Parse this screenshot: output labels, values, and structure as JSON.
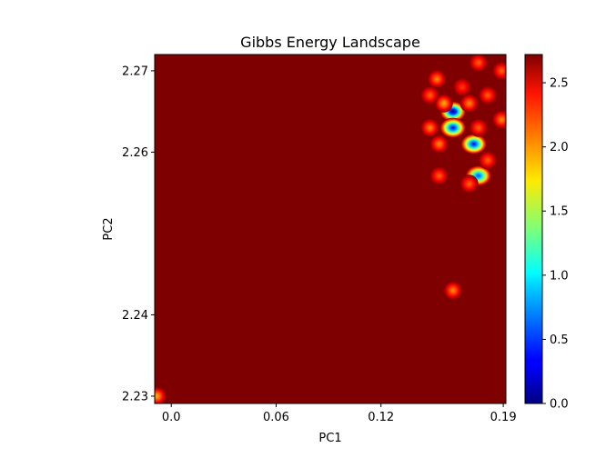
{
  "chart_data": {
    "type": "heatmap",
    "title": "Gibbs Energy Landscape",
    "xlabel": "PC1",
    "ylabel": "PC2",
    "xlim": [
      -0.0095,
      0.1915
    ],
    "ylim": [
      2.2291,
      2.272
    ],
    "x_ticks": [
      {
        "value": 0.0,
        "label": "0.0"
      },
      {
        "value": 0.06,
        "label": "0.06"
      },
      {
        "value": 0.12,
        "label": "0.12"
      },
      {
        "value": 0.19,
        "label": "0.19"
      }
    ],
    "y_ticks": [
      {
        "value": 2.23,
        "label": "2.23"
      },
      {
        "value": 2.24,
        "label": "2.24"
      },
      {
        "value": 2.26,
        "label": "2.26"
      },
      {
        "value": 2.27,
        "label": "2.27"
      }
    ],
    "colorbar": {
      "colormap": "jet",
      "range": [
        0.0,
        2.72
      ],
      "ticks": [
        {
          "value": 0.0,
          "label": "0.0"
        },
        {
          "value": 0.5,
          "label": "0.5"
        },
        {
          "value": 1.0,
          "label": "1.0"
        },
        {
          "value": 1.5,
          "label": "1.5"
        },
        {
          "value": 2.0,
          "label": "2.0"
        },
        {
          "value": 2.5,
          "label": "2.5"
        }
      ]
    },
    "background_value": 2.72,
    "spots": [
      {
        "x": 0.1612,
        "y": 2.265,
        "value": 0.0
      },
      {
        "x": 0.1612,
        "y": 2.263,
        "value": 0.3
      },
      {
        "x": 0.1731,
        "y": 2.261,
        "value": 0.3
      },
      {
        "x": 0.1758,
        "y": 2.2571,
        "value": 0.5
      },
      {
        "x": 0.152,
        "y": 2.269,
        "value": 2.0
      },
      {
        "x": 0.1665,
        "y": 2.268,
        "value": 2.2
      },
      {
        "x": 0.1758,
        "y": 2.271,
        "value": 2.1
      },
      {
        "x": 0.189,
        "y": 2.27,
        "value": 2.1
      },
      {
        "x": 0.148,
        "y": 2.267,
        "value": 2.1
      },
      {
        "x": 0.156,
        "y": 2.266,
        "value": 1.9
      },
      {
        "x": 0.1705,
        "y": 2.266,
        "value": 2.0
      },
      {
        "x": 0.1811,
        "y": 2.267,
        "value": 2.1
      },
      {
        "x": 0.148,
        "y": 2.263,
        "value": 2.0
      },
      {
        "x": 0.1758,
        "y": 2.263,
        "value": 2.1
      },
      {
        "x": 0.189,
        "y": 2.264,
        "value": 2.0
      },
      {
        "x": 0.1533,
        "y": 2.261,
        "value": 2.0
      },
      {
        "x": 0.1533,
        "y": 2.2571,
        "value": 2.1
      },
      {
        "x": 0.1811,
        "y": 2.259,
        "value": 2.1
      },
      {
        "x": 0.1705,
        "y": 2.2561,
        "value": 2.1
      },
      {
        "x": 0.1612,
        "y": 2.243,
        "value": 2.0
      },
      {
        "x": -0.0082,
        "y": 2.23,
        "value": 1.9
      }
    ]
  }
}
